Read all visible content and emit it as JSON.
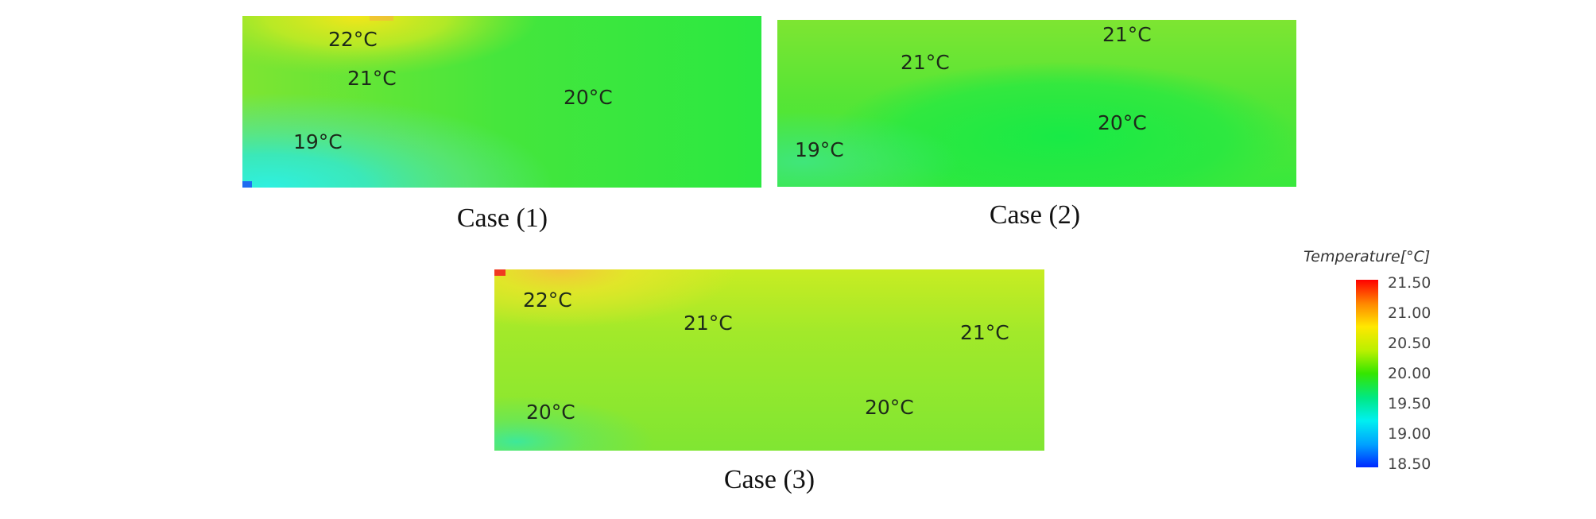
{
  "cases": [
    {
      "id": "case1",
      "title": "Case (1)",
      "labels": [
        "22°C",
        "21°C",
        "20°C",
        "19°C"
      ]
    },
    {
      "id": "case2",
      "title": "Case (2)",
      "labels": [
        "21°C",
        "21°C",
        "20°C",
        "19°C"
      ]
    },
    {
      "id": "case3",
      "title": "Case (3)",
      "labels": [
        "22°C",
        "21°C",
        "21°C",
        "20°C",
        "20°C"
      ]
    }
  ],
  "legend": {
    "title": "Temperature[°C]",
    "ticks": [
      "21.50",
      "21.00",
      "20.50",
      "20.00",
      "19.50",
      "19.00",
      "18.50"
    ],
    "colors": [
      "#ff0000",
      "#ff8a00",
      "#ffe800",
      "#b8f000",
      "#34e600",
      "#00e884",
      "#00f0f0",
      "#00a0ff",
      "#0028ff"
    ]
  }
}
